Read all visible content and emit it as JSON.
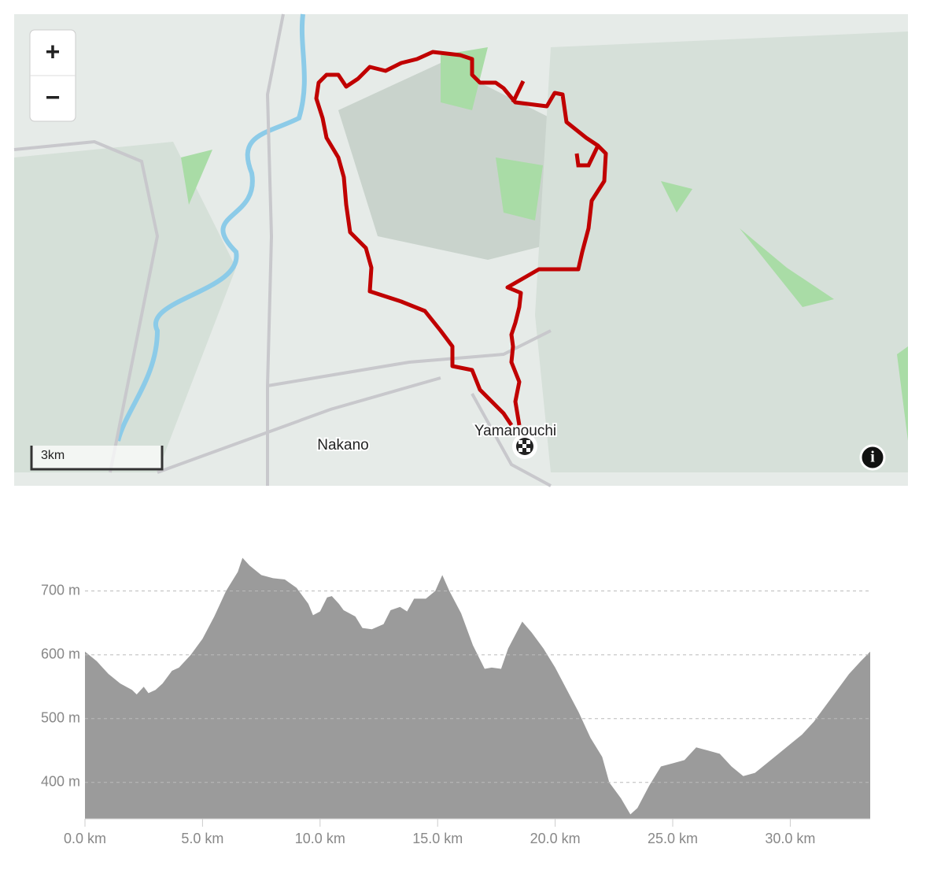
{
  "map": {
    "zoom_in": "+",
    "zoom_out": "−",
    "scale": "3km",
    "places": [
      "Nakano",
      "Yamanouchi"
    ],
    "info": "i"
  },
  "chart_data": {
    "type": "area",
    "color": "#9b9b9b",
    "grid": true,
    "x": [
      0,
      0.5,
      1.0,
      1.5,
      2.0,
      2.2,
      2.5,
      2.7,
      3.0,
      3.3,
      3.7,
      4.0,
      4.5,
      5.0,
      5.5,
      6.0,
      6.5,
      6.7,
      7.0,
      7.5,
      8.0,
      8.5,
      9.0,
      9.5,
      9.7,
      10.0,
      10.3,
      10.5,
      10.8,
      11.0,
      11.5,
      11.8,
      12.2,
      12.7,
      13.0,
      13.4,
      13.7,
      14.0,
      14.5,
      14.9,
      15.2,
      15.5,
      16.0,
      16.5,
      17.0,
      17.3,
      17.7,
      18.0,
      18.6,
      19.0,
      19.5,
      20.0,
      20.5,
      21.0,
      21.5,
      22.0,
      22.3,
      22.8,
      23.2,
      23.5,
      24.0,
      24.5,
      25.0,
      25.5,
      26.0,
      26.5,
      27.0,
      27.5,
      28.0,
      28.5,
      29.0,
      29.5,
      30.0,
      30.5,
      31.0,
      31.5,
      32.0,
      32.5,
      33.0,
      33.4
    ],
    "values": [
      605,
      590,
      570,
      555,
      545,
      538,
      550,
      540,
      545,
      555,
      575,
      580,
      600,
      625,
      660,
      700,
      730,
      752,
      740,
      725,
      720,
      718,
      705,
      680,
      662,
      668,
      690,
      692,
      680,
      670,
      660,
      642,
      640,
      648,
      670,
      675,
      668,
      688,
      688,
      700,
      725,
      700,
      665,
      615,
      578,
      580,
      578,
      610,
      652,
      635,
      610,
      580,
      545,
      510,
      470,
      440,
      400,
      375,
      350,
      360,
      395,
      425,
      430,
      435,
      455,
      450,
      445,
      425,
      410,
      415,
      430,
      445,
      460,
      475,
      495,
      520,
      545,
      570,
      590,
      605
    ],
    "xlim": [
      0,
      33.4
    ],
    "ylim": [
      343,
      760
    ],
    "xticks": [
      {
        "value": 0,
        "label": "0.0 km"
      },
      {
        "value": 5,
        "label": "5.0 km"
      },
      {
        "value": 10,
        "label": "10.0 km"
      },
      {
        "value": 15,
        "label": "15.0 km"
      },
      {
        "value": 20,
        "label": "20.0 km"
      },
      {
        "value": 25,
        "label": "25.0 km"
      },
      {
        "value": 30,
        "label": "30.0 km"
      }
    ],
    "yticks": [
      {
        "value": 400,
        "label": "400 m"
      },
      {
        "value": 500,
        "label": "500 m"
      },
      {
        "value": 600,
        "label": "600 m"
      },
      {
        "value": 700,
        "label": "700 m"
      }
    ]
  }
}
